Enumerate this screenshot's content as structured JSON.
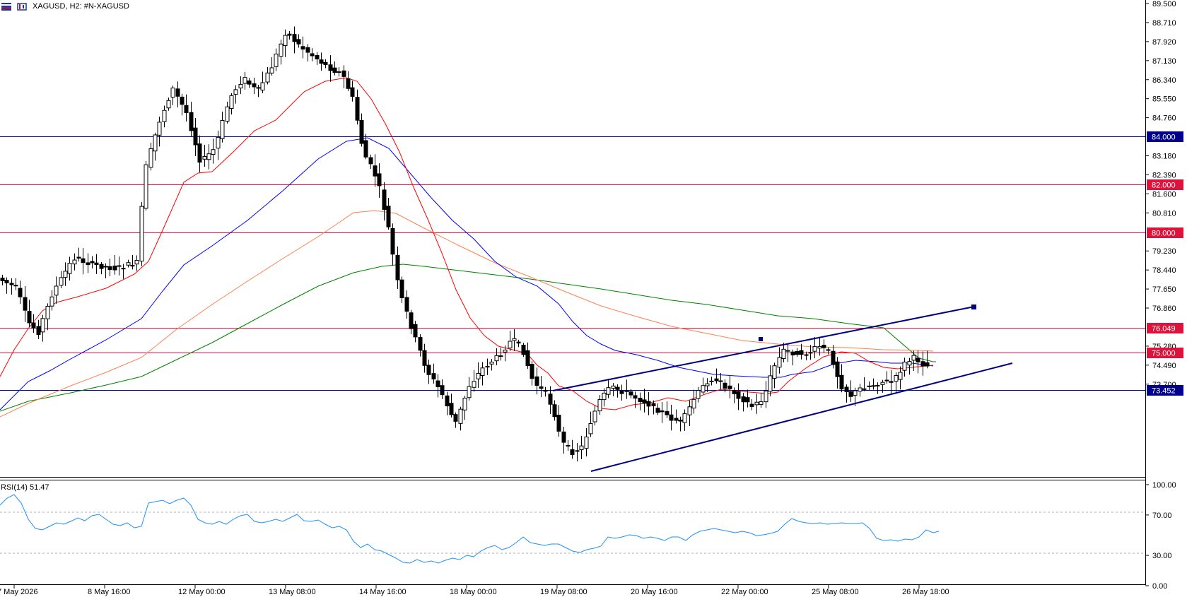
{
  "header": {
    "symbol_line": "XAGUSD, H2:  #N-XAGUSD",
    "icons": [
      "flag-icon",
      "chart-type-icon"
    ]
  },
  "rsi_label": "RSI(14) 51.47",
  "colors": {
    "price_label_blue": "#00008b",
    "price_label_red": "#dc143c",
    "ma_fast": "#ff0000",
    "ma_mid": "#0000ff",
    "ma_slow": "#ff7f50",
    "ma_long": "#008000",
    "rsi_line": "#1e90ff",
    "channel": "#000080"
  },
  "chart_data": {
    "type": "candlestick",
    "price_axis_ticks": [
      "89.500",
      "88.710",
      "87.920",
      "87.130",
      "86.340",
      "85.550",
      "84.760",
      "83.180",
      "82.390",
      "81.600",
      "80.810",
      "79.230",
      "78.440",
      "77.650",
      "76.860",
      "75.280",
      "74.490",
      "73.700"
    ],
    "rsi_axis_ticks": [
      "100.00",
      "70.00",
      "30.00",
      "0.00"
    ],
    "time_axis_labels": [
      "7 May 2026",
      "8 May 16:00",
      "12 May 00:00",
      "13 May 08:00",
      "14 May 16:00",
      "18 May 00:00",
      "19 May 08:00",
      "20 May 16:00",
      "22 May 00:00",
      "25 May 08:00",
      "26 May 18:00"
    ],
    "horizontal_levels": [
      {
        "label": "84.000",
        "value": 84.0,
        "color": "#00008b"
      },
      {
        "label": "82.000",
        "value": 82.0,
        "color": "#dc143c"
      },
      {
        "label": "80.000",
        "value": 80.0,
        "color": "#dc143c"
      },
      {
        "label": "76.049",
        "value": 76.049,
        "color": "#dc143c"
      },
      {
        "label": "75.000",
        "value": 75.0,
        "color": "#dc143c"
      },
      {
        "label": "73.452",
        "value": 73.452,
        "color": "#00008b"
      }
    ],
    "rsi_levels": [
      70,
      30
    ],
    "rsi_value": 51.47
  }
}
